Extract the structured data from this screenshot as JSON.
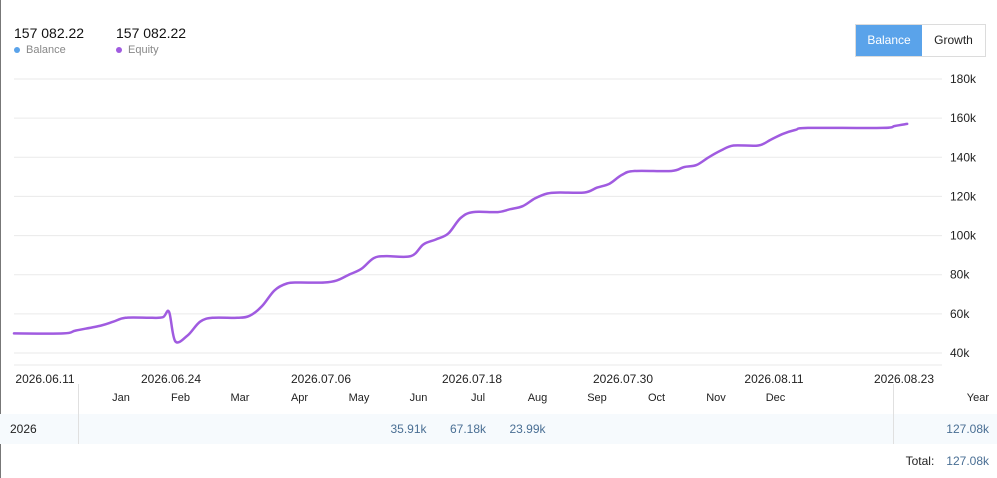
{
  "legend": {
    "balance": {
      "value": "157 082.22",
      "label": "Balance",
      "color": "#5aa3ea"
    },
    "equity": {
      "value": "157 082.22",
      "label": "Equity",
      "color": "#a05be0"
    }
  },
  "toggle": {
    "active": "Balance",
    "inactive": "Growth",
    "active_color": "#5aa3ea"
  },
  "chart_data": {
    "type": "line",
    "title": "",
    "xlabel": "",
    "ylabel": "",
    "x_tick_labels": [
      "2026.06.11",
      "2026.06.24",
      "2026.07.06",
      "2026.07.18",
      "2026.07.30",
      "2026.08.11",
      "2026.08.23"
    ],
    "y_tick_labels": [
      "180k",
      "160k",
      "140k",
      "120k",
      "100k",
      "80k",
      "60k",
      "40k"
    ],
    "ylim": [
      40000,
      180000
    ],
    "xlim": [
      "2026-06-11",
      "2026-08-24"
    ],
    "grid": true,
    "series": [
      {
        "name": "Equity",
        "color": "#a05be0",
        "points": [
          [
            "2026-06-11",
            50000
          ],
          [
            "2026-06-15",
            50000
          ],
          [
            "2026-06-16",
            51500
          ],
          [
            "2026-06-18",
            54000
          ],
          [
            "2026-06-19",
            56000
          ],
          [
            "2026-06-20",
            58000
          ],
          [
            "2026-06-22",
            58000
          ],
          [
            "2026-06-23",
            58300
          ],
          [
            "2026-06-23.5",
            61000
          ],
          [
            "2026-06-24",
            46000
          ],
          [
            "2026-06-25",
            49000
          ],
          [
            "2026-06-26",
            56000
          ],
          [
            "2026-06-27",
            58000
          ],
          [
            "2026-06-29",
            58000
          ],
          [
            "2026-06-30",
            59000
          ],
          [
            "2026-07-01",
            64000
          ],
          [
            "2026-07-02",
            72000
          ],
          [
            "2026-07-03",
            75500
          ],
          [
            "2026-07-04",
            76000
          ],
          [
            "2026-07-06",
            76000
          ],
          [
            "2026-07-07",
            77000
          ],
          [
            "2026-07-08",
            80000
          ],
          [
            "2026-07-09",
            83000
          ],
          [
            "2026-07-10",
            88500
          ],
          [
            "2026-07-11",
            89500
          ],
          [
            "2026-07-13",
            89500
          ],
          [
            "2026-07-14",
            95500
          ],
          [
            "2026-07-15",
            98000
          ],
          [
            "2026-07-16",
            101000
          ],
          [
            "2026-07-17",
            109000
          ],
          [
            "2026-07-18",
            112000
          ],
          [
            "2026-07-20",
            112000
          ],
          [
            "2026-07-21",
            113500
          ],
          [
            "2026-07-22",
            115000
          ],
          [
            "2026-07-23",
            119000
          ],
          [
            "2026-07-24",
            121500
          ],
          [
            "2026-07-25",
            122000
          ],
          [
            "2026-07-27",
            122000
          ],
          [
            "2026-07-28",
            124500
          ],
          [
            "2026-07-29",
            126500
          ],
          [
            "2026-07-30",
            131000
          ],
          [
            "2026-07-31",
            133000
          ],
          [
            "2026-08-03",
            133000
          ],
          [
            "2026-08-04",
            135000
          ],
          [
            "2026-08-05",
            136000
          ],
          [
            "2026-08-06",
            140000
          ],
          [
            "2026-08-07",
            143500
          ],
          [
            "2026-08-08",
            146000
          ],
          [
            "2026-08-10",
            146000
          ],
          [
            "2026-08-11",
            149000
          ],
          [
            "2026-08-12",
            152000
          ],
          [
            "2026-08-13",
            154000
          ],
          [
            "2026-08-14",
            155000
          ],
          [
            "2026-08-20",
            155000
          ],
          [
            "2026-08-21",
            156000
          ],
          [
            "2026-08-22",
            157082
          ]
        ]
      }
    ]
  },
  "monthly_table": {
    "months": [
      "Jan",
      "Feb",
      "Mar",
      "Apr",
      "May",
      "Jun",
      "Jul",
      "Aug",
      "Sep",
      "Oct",
      "Nov",
      "Dec"
    ],
    "year_header": "Year",
    "rows": [
      {
        "year": "2026",
        "values": [
          "",
          "",
          "",
          "",
          "",
          "35.91k",
          "67.18k",
          "23.99k",
          "",
          "",
          "",
          ""
        ],
        "total": "127.08k"
      }
    ],
    "total_label": "Total:",
    "total_value": "127.08k"
  }
}
